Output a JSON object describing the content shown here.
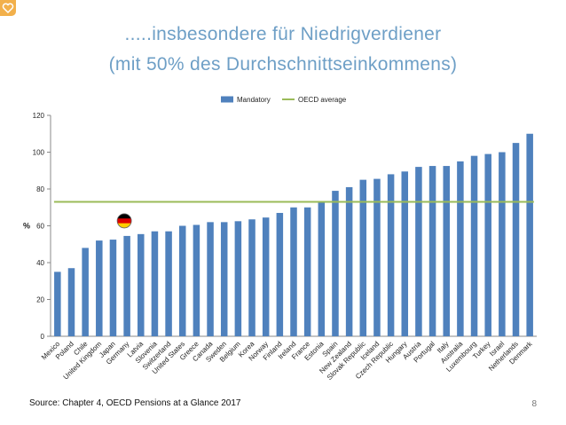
{
  "slide": {
    "title_line1": ".....insbesondere für Niedrigverdiener",
    "title_line2": "(mit 50% des Durchschnittseinkommens)",
    "source": "Source: Chapter 4, OECD Pensions at a Glance 2017",
    "page_number": "8"
  },
  "colors": {
    "title": "#6e9fc6",
    "bar": "#4f81bd",
    "average_line": "#9bbb59",
    "flag_black": "#000000",
    "flag_red": "#dd0000",
    "flag_gold": "#ffce00"
  },
  "chart_data": {
    "type": "bar",
    "ylabel": "%",
    "ylim": [
      0,
      120
    ],
    "yticks": [
      0,
      20,
      40,
      60,
      80,
      100,
      120
    ],
    "grid": false,
    "legend_position": "top-center",
    "categories": [
      "Mexico",
      "Poland",
      "Chile",
      "United Kingdom",
      "Japan",
      "Germany",
      "Latvia",
      "Slovenia",
      "Switzerland",
      "United States",
      "Greece",
      "Canada",
      "Sweden",
      "Belgium",
      "Korea",
      "Norway",
      "Finland",
      "Ireland",
      "France",
      "Estonia",
      "Spain",
      "New Zealand",
      "Slovak Republic",
      "Iceland",
      "Czech Republic",
      "Hungary",
      "Austria",
      "Portugal",
      "Italy",
      "Australia",
      "Luxembourg",
      "Turkey",
      "Israel",
      "Netherlands",
      "Denmark"
    ],
    "series": [
      {
        "name": "Mandatory",
        "values": [
          35,
          37,
          48,
          52,
          52.5,
          54.5,
          55.5,
          57,
          57,
          60,
          60.5,
          62,
          62,
          62.5,
          63.5,
          64.5,
          67,
          70,
          70,
          73,
          79,
          81,
          85,
          85.5,
          88,
          89.5,
          92,
          92.5,
          92.5,
          95,
          98,
          99,
          100,
          105,
          110
        ]
      },
      {
        "name": "OECD average",
        "type": "line",
        "value": 73
      }
    ],
    "highlight": {
      "category": "Germany",
      "marker": "german-flag"
    }
  }
}
